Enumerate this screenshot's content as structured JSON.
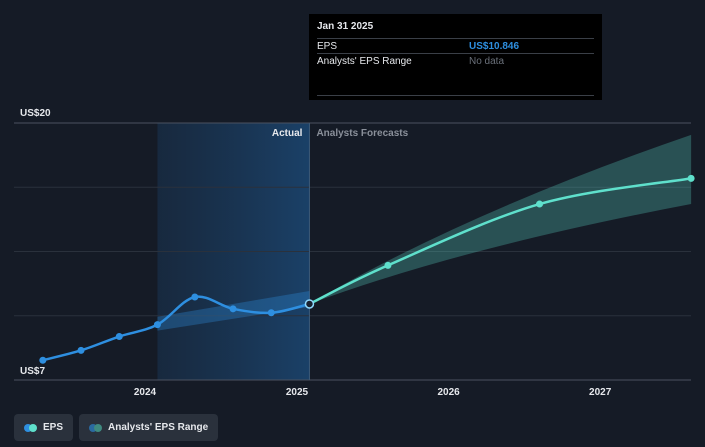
{
  "chart_data": {
    "type": "line",
    "y_axis": {
      "top_label": "US$20",
      "bottom_label": "US$7",
      "ylim": [
        7,
        20
      ]
    },
    "x_ticks": [
      "2024",
      "2025",
      "2026",
      "2027"
    ],
    "regions": {
      "actual": "Actual",
      "forecast": "Analysts Forecasts"
    },
    "series": [
      {
        "name": "EPS",
        "color": "#2e8fe0",
        "points": [
          {
            "x": "2023-04-30",
            "y": 8.0
          },
          {
            "x": "2023-07-31",
            "y": 8.5
          },
          {
            "x": "2023-10-31",
            "y": 9.2
          },
          {
            "x": "2024-01-31",
            "y": 9.8
          },
          {
            "x": "2024-04-30",
            "y": 11.2
          },
          {
            "x": "2024-07-31",
            "y": 10.6
          },
          {
            "x": "2024-10-31",
            "y": 10.4
          },
          {
            "x": "2025-01-31",
            "y": 10.846
          }
        ]
      },
      {
        "name": "EPS Forecast",
        "color": "#5fe0cc",
        "points": [
          {
            "x": "2025-01-31",
            "y": 10.846
          },
          {
            "x": "2025-08-08",
            "y": 12.8
          },
          {
            "x": "2026-08-08",
            "y": 15.9
          },
          {
            "x": "2027-08-08",
            "y": 17.2
          }
        ]
      }
    ],
    "ranges": [
      {
        "name": "Analysts' EPS Range (historical)",
        "color": "#2e8fe0",
        "points": [
          {
            "x": "2024-01-31",
            "low": 9.5,
            "high": 10.2
          },
          {
            "x": "2025-01-31",
            "low": 10.7,
            "high": 11.5
          }
        ]
      },
      {
        "name": "Analysts' EPS Range (forecast)",
        "color": "#5fe0cc",
        "points": [
          {
            "x": "2025-01-31",
            "low": 10.846,
            "high": 10.846
          },
          {
            "x": "2026-02-01",
            "low": 13.7,
            "high": 15.4
          },
          {
            "x": "2027-08-08",
            "low": 15.9,
            "high": 19.4
          }
        ]
      }
    ],
    "highlight_range": {
      "start": "2024-01-31",
      "end": "2025-01-31"
    },
    "grid": true
  },
  "tooltip": {
    "date": "Jan 31 2025",
    "rows": [
      {
        "label": "EPS",
        "value": "US$10.846"
      },
      {
        "label": "Analysts' EPS Range",
        "value": "No data"
      }
    ]
  },
  "legend": [
    {
      "label": "EPS",
      "colors": [
        "#2e8fe0",
        "#5fe0cc"
      ]
    },
    {
      "label": "Analysts' EPS Range",
      "colors": [
        "#2a6aa0",
        "#3f8a80"
      ]
    }
  ]
}
